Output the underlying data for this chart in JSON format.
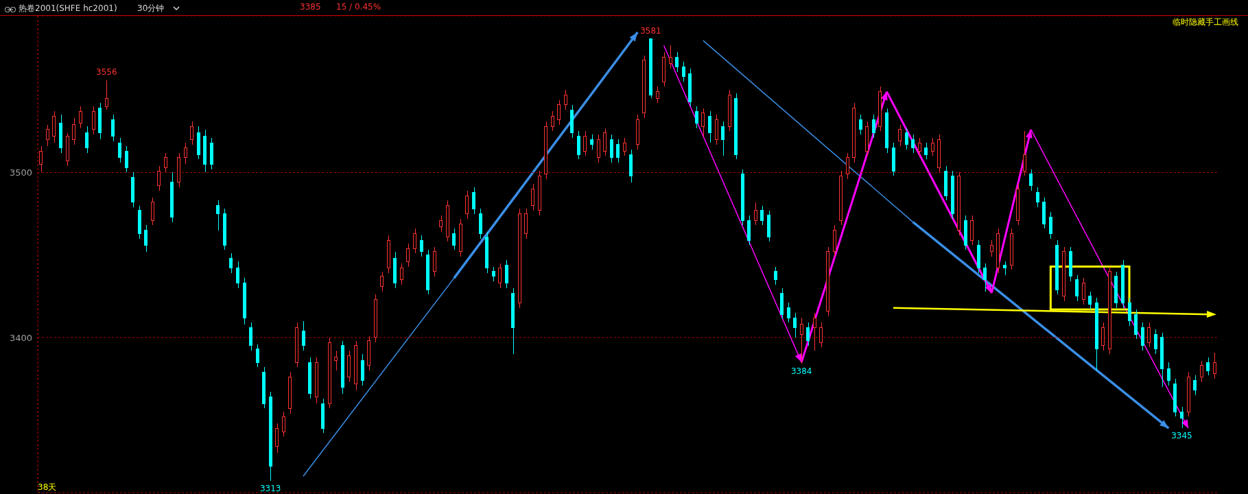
{
  "chart_data": {
    "type": "candlestick",
    "title": "热卷2001(SHFE hc2001)",
    "subtitle": "30分钟",
    "categories": [
      null,
      null,
      null,
      null,
      null,
      null,
      null,
      null,
      null,
      null,
      null,
      null,
      null,
      null,
      null,
      null,
      null,
      null,
      null,
      null,
      null,
      null,
      null,
      null,
      null,
      null,
      null,
      null,
      null,
      null,
      null,
      null,
      null,
      null,
      null,
      null,
      null,
      null,
      null,
      null,
      null,
      null,
      null,
      null,
      null,
      null,
      null,
      null,
      null,
      null,
      null,
      null,
      null,
      null,
      null,
      null,
      null,
      null,
      null,
      null,
      null,
      null,
      null,
      null,
      null,
      null,
      null,
      null,
      null,
      null,
      null,
      null,
      null,
      null,
      null,
      null,
      null,
      null,
      null,
      null,
      null,
      null,
      null,
      null,
      null,
      null,
      null,
      null,
      null,
      null,
      null,
      null,
      null,
      null,
      null,
      null,
      null,
      null,
      null,
      null,
      null,
      null,
      null,
      null,
      null,
      null,
      null,
      null,
      null,
      null,
      null,
      null,
      null,
      null,
      null,
      null,
      null,
      null,
      null,
      null,
      null,
      null,
      null,
      null,
      null,
      null,
      null,
      null,
      null,
      null,
      null,
      null,
      null,
      null,
      null,
      null,
      null,
      null,
      null,
      null,
      null,
      null,
      null,
      null,
      null,
      null,
      null,
      null,
      null,
      null,
      null,
      null,
      null,
      null,
      null,
      null,
      null,
      null,
      null,
      null,
      null,
      null,
      null,
      null,
      null,
      null,
      null,
      null,
      null,
      null,
      null,
      null,
      null,
      null,
      null,
      null,
      null,
      null,
      null,
      null
    ],
    "ohlc": [
      [
        3505,
        3516,
        3500,
        3513
      ],
      [
        3520,
        3529,
        3516,
        3526
      ],
      [
        3522,
        3537,
        3518,
        3534
      ],
      [
        3530,
        3535,
        3512,
        3515
      ],
      [
        3507,
        3524,
        3504,
        3522
      ],
      [
        3520,
        3533,
        3517,
        3529
      ],
      [
        3530,
        3540,
        3527,
        3537
      ],
      [
        3524,
        3528,
        3512,
        3515
      ],
      [
        3526,
        3540,
        3523,
        3537
      ],
      [
        3539,
        3542,
        3520,
        3524
      ],
      [
        3540,
        3556,
        3538,
        3545
      ],
      [
        3532,
        3535,
        3519,
        3522
      ],
      [
        3518,
        3521,
        3506,
        3509
      ],
      [
        3513,
        3516,
        3500,
        3503
      ],
      [
        3497,
        3500,
        3479,
        3482
      ],
      [
        3477,
        3480,
        3460,
        3463
      ],
      [
        3465,
        3468,
        3452,
        3456
      ],
      [
        3471,
        3485,
        3468,
        3482
      ],
      [
        3492,
        3504,
        3489,
        3501
      ],
      [
        3503,
        3512,
        3500,
        3509
      ],
      [
        3494,
        3500,
        3470,
        3473
      ],
      [
        3494,
        3512,
        3491,
        3509
      ],
      [
        3509,
        3518,
        3505,
        3515
      ],
      [
        3520,
        3531,
        3517,
        3528
      ],
      [
        3524,
        3528,
        3508,
        3511
      ],
      [
        3522,
        3526,
        3500,
        3505
      ],
      [
        3518,
        3521,
        3502,
        3505
      ],
      [
        3480,
        3483,
        3465,
        3475
      ],
      [
        3475,
        3478,
        3453,
        3456
      ],
      [
        3448,
        3451,
        3439,
        3442
      ],
      [
        3442,
        3446,
        3430,
        3433
      ],
      [
        3433,
        3436,
        3408,
        3412
      ],
      [
        3406,
        3409,
        3392,
        3395
      ],
      [
        3393,
        3396,
        3382,
        3385
      ],
      [
        3379,
        3382,
        3357,
        3360
      ],
      [
        3364,
        3367,
        3313,
        3322
      ],
      [
        3334,
        3348,
        3330,
        3345
      ],
      [
        3343,
        3355,
        3340,
        3352
      ],
      [
        3357,
        3379,
        3354,
        3376
      ],
      [
        3385,
        3409,
        3382,
        3406
      ],
      [
        3404,
        3410,
        3392,
        3395
      ],
      [
        3385,
        3388,
        3363,
        3366
      ],
      [
        3364,
        3388,
        3360,
        3385
      ],
      [
        3360,
        3363,
        3342,
        3345
      ],
      [
        3360,
        3400,
        3357,
        3397
      ],
      [
        3386,
        3392,
        3380,
        3388
      ],
      [
        3395,
        3398,
        3366,
        3370
      ],
      [
        3376,
        3392,
        3373,
        3389
      ],
      [
        3372,
        3398,
        3368,
        3395
      ],
      [
        3386,
        3390,
        3371,
        3374
      ],
      [
        3383,
        3401,
        3380,
        3398
      ],
      [
        3400,
        3426,
        3397,
        3423
      ],
      [
        3431,
        3440,
        3428,
        3437
      ],
      [
        3442,
        3462,
        3439,
        3459
      ],
      [
        3448,
        3452,
        3430,
        3433
      ],
      [
        3435,
        3445,
        3432,
        3442
      ],
      [
        3446,
        3457,
        3443,
        3454
      ],
      [
        3454,
        3466,
        3451,
        3463
      ],
      [
        3459,
        3462,
        3449,
        3452
      ],
      [
        3450,
        3453,
        3426,
        3429
      ],
      [
        3440,
        3455,
        3437,
        3452
      ],
      [
        3467,
        3474,
        3464,
        3471
      ],
      [
        3461,
        3483,
        3458,
        3480
      ],
      [
        3463,
        3466,
        3453,
        3456
      ],
      [
        3452,
        3472,
        3449,
        3469
      ],
      [
        3475,
        3489,
        3472,
        3486
      ],
      [
        3488,
        3491,
        3475,
        3478
      ],
      [
        3475,
        3478,
        3460,
        3463
      ],
      [
        3461,
        3464,
        3439,
        3442
      ],
      [
        3440,
        3443,
        3434,
        3437
      ],
      [
        3433,
        3445,
        3430,
        3442
      ],
      [
        3444,
        3447,
        3430,
        3433
      ],
      [
        3427,
        3430,
        3390,
        3406
      ],
      [
        3421,
        3478,
        3418,
        3475
      ],
      [
        3463,
        3478,
        3460,
        3475
      ],
      [
        3480,
        3493,
        3477,
        3490
      ],
      [
        3477,
        3501,
        3474,
        3498
      ],
      [
        3499,
        3531,
        3496,
        3528
      ],
      [
        3528,
        3537,
        3525,
        3534
      ],
      [
        3532,
        3544,
        3529,
        3541
      ],
      [
        3541,
        3550,
        3538,
        3547
      ],
      [
        3538,
        3541,
        3521,
        3524
      ],
      [
        3522,
        3525,
        3508,
        3511
      ],
      [
        3513,
        3525,
        3510,
        3522
      ],
      [
        3520,
        3523,
        3514,
        3517
      ],
      [
        3509,
        3523,
        3506,
        3520
      ],
      [
        3513,
        3527,
        3510,
        3524
      ],
      [
        3520,
        3523,
        3506,
        3509
      ],
      [
        3517,
        3520,
        3506,
        3509
      ],
      [
        3513,
        3521,
        3510,
        3518
      ],
      [
        3511,
        3514,
        3494,
        3498
      ],
      [
        3517,
        3535,
        3514,
        3532
      ],
      [
        3536,
        3571,
        3533,
        3568
      ],
      [
        3581,
        3581,
        3545,
        3547
      ],
      [
        3545,
        3552,
        3542,
        3549
      ],
      [
        3555,
        3573,
        3552,
        3570
      ],
      [
        3566,
        3577,
        3563,
        3570
      ],
      [
        3570,
        3573,
        3561,
        3564
      ],
      [
        3564,
        3567,
        3555,
        3558
      ],
      [
        3560,
        3563,
        3540,
        3543
      ],
      [
        3537,
        3540,
        3527,
        3530
      ],
      [
        3528,
        3539,
        3522,
        3536
      ],
      [
        3534,
        3537,
        3518,
        3524
      ],
      [
        3520,
        3535,
        3517,
        3532
      ],
      [
        3528,
        3531,
        3510,
        3520
      ],
      [
        3528,
        3550,
        3525,
        3547
      ],
      [
        3545,
        3548,
        3508,
        3511
      ],
      [
        3499,
        3502,
        3468,
        3471
      ],
      [
        3471,
        3474,
        3456,
        3459
      ],
      [
        3471,
        3482,
        3468,
        3477
      ],
      [
        3477,
        3480,
        3468,
        3471
      ],
      [
        3474,
        3477,
        3458,
        3461
      ],
      [
        3440,
        3443,
        3432,
        3435
      ],
      [
        3427,
        3430,
        3411,
        3414
      ],
      [
        3418,
        3421,
        3409,
        3412
      ],
      [
        3412,
        3415,
        3400,
        3406
      ],
      [
        3402,
        3412,
        3384,
        3408
      ],
      [
        3406,
        3409,
        3395,
        3398
      ],
      [
        3406,
        3415,
        3392,
        3412
      ],
      [
        3397,
        3409,
        3394,
        3406
      ],
      [
        3416,
        3455,
        3413,
        3452
      ],
      [
        3452,
        3468,
        3449,
        3465
      ],
      [
        3471,
        3501,
        3468,
        3498
      ],
      [
        3499,
        3512,
        3496,
        3509
      ],
      [
        3509,
        3542,
        3506,
        3539
      ],
      [
        3532,
        3535,
        3523,
        3526
      ],
      [
        3513,
        3531,
        3510,
        3528
      ],
      [
        3532,
        3535,
        3521,
        3524
      ],
      [
        3528,
        3552,
        3525,
        3549
      ],
      [
        3536,
        3539,
        3512,
        3515
      ],
      [
        3515,
        3518,
        3498,
        3501
      ],
      [
        3519,
        3529,
        3516,
        3526
      ],
      [
        3524,
        3527,
        3514,
        3517
      ],
      [
        3520,
        3523,
        3512,
        3515
      ],
      [
        3513,
        3521,
        3510,
        3518
      ],
      [
        3515,
        3518,
        3508,
        3511
      ],
      [
        3513,
        3521,
        3510,
        3518
      ],
      [
        3503,
        3523,
        3500,
        3520
      ],
      [
        3501,
        3504,
        3483,
        3486
      ],
      [
        3498,
        3501,
        3472,
        3475
      ],
      [
        3465,
        3500,
        3462,
        3498
      ],
      [
        3471,
        3474,
        3453,
        3456
      ],
      [
        3459,
        3474,
        3456,
        3471
      ],
      [
        3456,
        3459,
        3439,
        3442
      ],
      [
        3442,
        3445,
        3428,
        3435
      ],
      [
        3452,
        3459,
        3449,
        3456
      ],
      [
        3442,
        3466,
        3439,
        3463
      ],
      [
        3444,
        3446,
        3438,
        3442
      ],
      [
        3444,
        3466,
        3441,
        3463
      ],
      [
        3471,
        3493,
        3468,
        3490
      ],
      [
        3501,
        3525,
        3498,
        3511
      ],
      [
        3499,
        3502,
        3489,
        3492
      ],
      [
        3488,
        3491,
        3479,
        3482
      ],
      [
        3482,
        3485,
        3466,
        3469
      ],
      [
        3473,
        3476,
        3460,
        3463
      ],
      [
        3456,
        3459,
        3426,
        3429
      ],
      [
        3425,
        3455,
        3422,
        3452
      ],
      [
        3452,
        3455,
        3434,
        3437
      ],
      [
        3435,
        3438,
        3422,
        3425
      ],
      [
        3423,
        3436,
        3420,
        3433
      ],
      [
        3425,
        3428,
        3417,
        3420
      ],
      [
        3421,
        3424,
        3380,
        3393
      ],
      [
        3395,
        3409,
        3392,
        3406
      ],
      [
        3393,
        3443,
        3390,
        3440
      ],
      [
        3437,
        3440,
        3418,
        3421
      ],
      [
        3444,
        3447,
        3418,
        3421
      ],
      [
        3421,
        3424,
        3407,
        3410
      ],
      [
        3414,
        3417,
        3399,
        3402
      ],
      [
        3406,
        3409,
        3392,
        3395
      ],
      [
        3397,
        3409,
        3394,
        3406
      ],
      [
        3402,
        3405,
        3390,
        3393
      ],
      [
        3400,
        3403,
        3370,
        3381
      ],
      [
        3381,
        3385,
        3371,
        3374
      ],
      [
        3372,
        3375,
        3352,
        3355
      ],
      [
        3355,
        3358,
        3345,
        3351
      ],
      [
        3355,
        3379,
        3352,
        3376
      ],
      [
        3374,
        3377,
        3365,
        3368
      ],
      [
        3376,
        3386,
        3373,
        3383
      ],
      [
        3385,
        3388,
        3377,
        3380
      ],
      [
        3378,
        3391,
        3375,
        3385
      ]
    ],
    "colors": [
      "#ff3232",
      "#ff3232",
      "#ff3232",
      "#00ffff",
      "#ff3232",
      "#ff3232",
      "#ff3232",
      "#00ffff",
      "#ff3232",
      "#00ffff",
      "#ff3232",
      "#00ffff",
      "#00ffff",
      "#00ffff",
      "#00ffff",
      "#00ffff",
      "#00ffff",
      "#ff3232",
      "#ff3232",
      "#ff3232",
      "#00ffff",
      "#ff3232",
      "#ff3232",
      "#ff3232",
      "#00ffff",
      "#00ffff",
      "#00ffff",
      "#00ffff",
      "#00ffff",
      "#00ffff",
      "#00ffff",
      "#00ffff",
      "#00ffff",
      "#00ffff",
      "#00ffff",
      "#00ffff",
      "#ff3232",
      "#ff3232",
      "#ff3232",
      "#ff3232",
      "#00ffff",
      "#00ffff",
      "#ff3232",
      "#00ffff",
      "#ff3232",
      "#ff3232",
      "#00ffff",
      "#ff3232",
      "#ff3232",
      "#00ffff",
      "#ff3232",
      "#ff3232",
      "#ff3232",
      "#ff3232",
      "#00ffff",
      "#ff3232",
      "#ff3232",
      "#ff3232",
      "#00ffff",
      "#00ffff",
      "#ff3232",
      "#ff3232",
      "#ff3232",
      "#00ffff",
      "#ff3232",
      "#ff3232",
      "#00ffff",
      "#00ffff",
      "#00ffff",
      "#00ffff",
      "#ff3232",
      "#00ffff",
      "#00ffff",
      "#ff3232",
      "#ff3232",
      "#ff3232",
      "#ff3232",
      "#ff3232",
      "#ff3232",
      "#ff3232",
      "#ff3232",
      "#00ffff",
      "#00ffff",
      "#ff3232",
      "#00ffff",
      "#ff3232",
      "#ff3232",
      "#00ffff",
      "#00ffff",
      "#ff3232",
      "#00ffff",
      "#ff3232",
      "#ff3232",
      "#00ffff",
      "#ff3232",
      "#ff3232",
      "#ff3232",
      "#00ffff",
      "#00ffff",
      "#00ffff",
      "#00ffff",
      "#ff3232",
      "#00ffff",
      "#ff3232",
      "#00ffff",
      "#ff3232",
      "#00ffff",
      "#00ffff",
      "#00ffff",
      "#ff3232",
      "#00ffff",
      "#00ffff",
      "#00ffff",
      "#00ffff",
      "#00ffff",
      "#00ffff",
      "#ff3232",
      "#00ffff",
      "#ff3232",
      "#ff3232",
      "#ff3232",
      "#ff3232",
      "#ff3232",
      "#ff3232",
      "#ff3232",
      "#00ffff",
      "#ff3232",
      "#00ffff",
      "#ff3232",
      "#00ffff",
      "#00ffff",
      "#ff3232",
      "#00ffff",
      "#00ffff",
      "#ff3232",
      "#00ffff",
      "#ff3232",
      "#ff3232",
      "#00ffff",
      "#00ffff",
      "#ff3232",
      "#00ffff",
      "#ff3232",
      "#00ffff",
      "#00ffff",
      "#ff3232",
      "#ff3232",
      "#00ffff",
      "#ff3232",
      "#ff3232",
      "#ff3232",
      "#00ffff",
      "#00ffff",
      "#00ffff",
      "#00ffff",
      "#00ffff",
      "#ff3232",
      "#00ffff",
      "#00ffff",
      "#ff3232",
      "#00ffff",
      "#00ffff",
      "#ff3232",
      "#ff3232",
      "#00ffff",
      "#00ffff",
      "#00ffff",
      "#00ffff",
      "#00ffff",
      "#ff3232",
      "#00ffff",
      "#00ffff",
      "#00ffff",
      "#00ffff",
      "#00ffff",
      "#ff3232",
      "#00ffff",
      "#ff3232",
      "#00ffff",
      "#ff3232"
    ],
    "ylim": [
      3306,
      3595
    ],
    "yticks": [
      3400,
      3500
    ],
    "grid": "y",
    "tick_labels": "y",
    "annotations": [
      "3385",
      "15 / 0.45%",
      "临时隐藏手工画线",
      "38天",
      {
        "text": "3556",
        "y": 3556
      },
      {
        "text": "3581",
        "y": 3581
      },
      {
        "text": "3313",
        "y": 3313
      },
      {
        "text": "3384",
        "y": 3384
      },
      {
        "text": "3345",
        "y": 3345
      }
    ]
  }
}
